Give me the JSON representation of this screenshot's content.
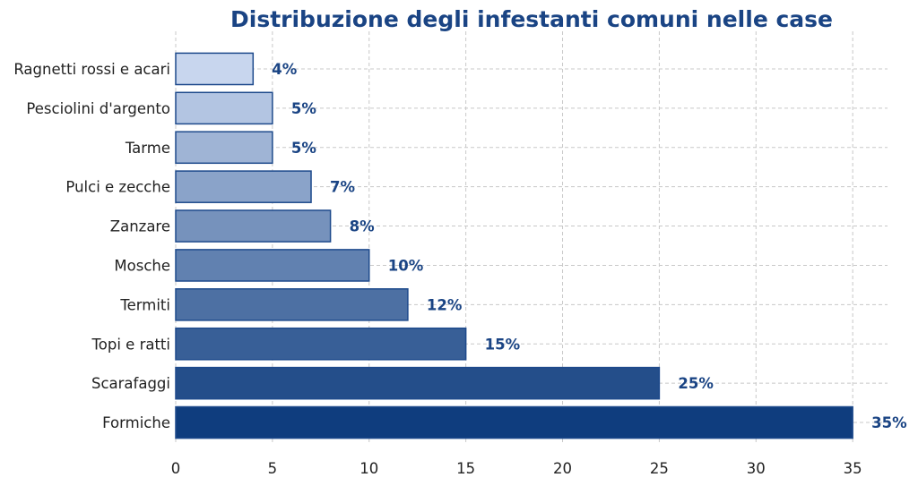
{
  "chart_data": {
    "type": "bar",
    "orientation": "horizontal",
    "title": "Distribuzione degli infestanti comuni nelle case",
    "xlabel": "",
    "ylabel": "",
    "categories": [
      "Formiche",
      "Scarafaggi",
      "Topi e ratti",
      "Termiti",
      "Mosche",
      "Zanzare",
      "Pulci e zecche",
      "Tarme",
      "Pesciolini d'argento",
      "Ragnetti rossi e acari"
    ],
    "values": [
      35,
      25,
      15,
      12,
      10,
      8,
      7,
      5,
      5,
      4
    ],
    "data_labels": [
      "35%",
      "25%",
      "15%",
      "12%",
      "10%",
      "8%",
      "7%",
      "5%",
      "5%",
      "4%"
    ],
    "xlim": [
      0,
      36.8
    ],
    "xticks": [
      0,
      5,
      10,
      15,
      20,
      25,
      30,
      35
    ],
    "grid": true,
    "colors": {
      "title": "#1a4484",
      "label": "#1a4484",
      "edge": "#1e4a8c",
      "bar_dark": "#0f3d7e",
      "bar_light": "#c8d6ee"
    }
  }
}
